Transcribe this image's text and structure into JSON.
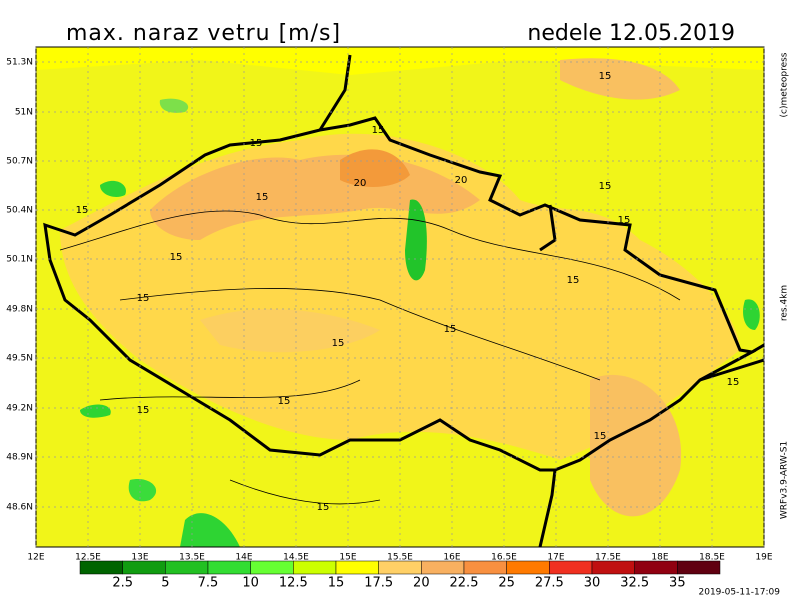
{
  "header": {
    "title": "max. naraz vetru [m/s]",
    "date": "nedele 12.05.2019"
  },
  "map": {
    "lat_labels": [
      "51.3N",
      "51N",
      "50.7N",
      "50.4N",
      "50.1N",
      "49.8N",
      "49.5N",
      "49.2N",
      "48.9N",
      "48.6N"
    ],
    "lon_labels": [
      "12E",
      "12.5E",
      "13E",
      "13.5E",
      "14E",
      "14.5E",
      "15E",
      "15.5E",
      "16E",
      "16.5E",
      "17E",
      "17.5E",
      "18E",
      "18.5E",
      "19E"
    ],
    "contour_labels": [
      "15",
      "15",
      "15",
      "20",
      "20",
      "15",
      "15",
      "15",
      "15",
      "15",
      "15",
      "15",
      "15",
      "15",
      "15",
      "15",
      "15",
      "15",
      "15"
    ]
  },
  "legend": {
    "labels": [
      "2.5",
      "5",
      "7.5",
      "10",
      "12.5",
      "15",
      "17.5",
      "20",
      "22.5",
      "25",
      "27.5",
      "30",
      "32.5",
      "35"
    ]
  },
  "side": {
    "copyright": "(c)meteopress",
    "resolution": "res.4km",
    "model": "WRFv3.9-ARW-S1"
  },
  "footer": {
    "timestamp": "2019-05-11-17:09"
  }
}
